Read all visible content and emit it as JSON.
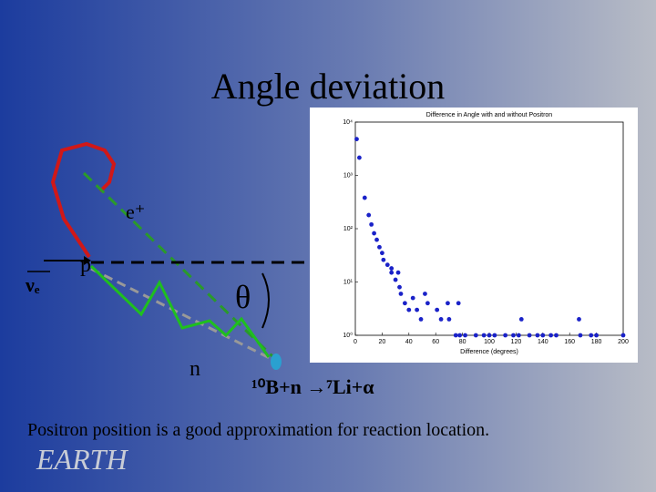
{
  "slide": {
    "title": "Angle deviation",
    "caption": "Positron position is a good approximation for reaction location.",
    "logo": "EARTH",
    "diagram": {
      "positron": "e⁺",
      "proton": "p",
      "neutrino": "νₑ",
      "angle": "θ",
      "neutron": "n",
      "reaction": "¹⁰B+n →⁷Li+α"
    }
  },
  "chart_data": {
    "type": "scatter",
    "title": "Difference in Angle with and without Positron",
    "x_label": "Difference (degrees)",
    "color": "#1a22c8",
    "log_y": true,
    "xlim": [
      0,
      200
    ],
    "xticks": [
      0,
      20,
      40,
      60,
      80,
      100,
      120,
      140,
      160,
      180,
      200
    ],
    "ylim": [
      1,
      10000
    ],
    "yticks": [
      {
        "value": 1,
        "label": "10⁰"
      },
      {
        "value": 10,
        "label": "10¹"
      },
      {
        "value": 100,
        "label": "10²"
      },
      {
        "value": 1000,
        "label": "10³"
      },
      {
        "value": 10000,
        "label": "10⁴"
      }
    ],
    "x": [
      1,
      3,
      7,
      10,
      12,
      14,
      16,
      18,
      20,
      21,
      24,
      27,
      27,
      30,
      32,
      33,
      34,
      37,
      40,
      43,
      46,
      49,
      52,
      54,
      61,
      64,
      69,
      70,
      77,
      75,
      78,
      82,
      90,
      96,
      100,
      104,
      112,
      118,
      122,
      130,
      136,
      140,
      146,
      150,
      168,
      176,
      180,
      200,
      124,
      167
    ],
    "y": [
      4800,
      2150,
      380,
      180,
      120,
      82,
      62,
      45,
      35,
      26,
      21,
      18,
      15,
      11,
      15,
      8,
      6,
      4,
      3,
      5,
      3,
      2,
      6,
      4,
      3,
      2,
      4,
      2,
      4,
      1,
      1,
      1,
      1,
      1,
      1,
      1,
      1,
      1,
      1,
      1,
      1,
      1,
      1,
      1,
      1,
      1,
      1,
      1,
      2,
      2
    ]
  }
}
